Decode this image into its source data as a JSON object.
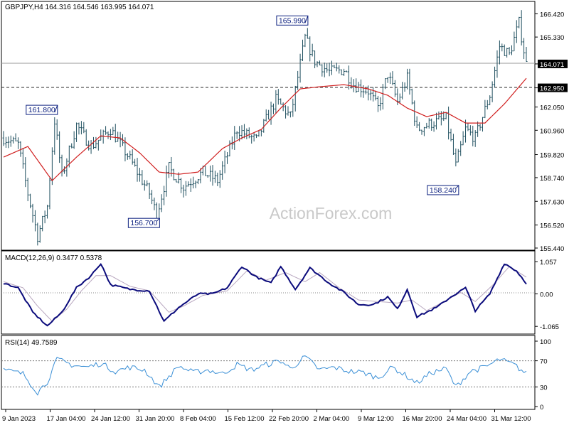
{
  "colors": {
    "frame": "#000000",
    "bars": "#1f4f5f",
    "moving_average": "#d01f1f",
    "macd_line": "#0b0b7c",
    "macd_signal": "#b8a7bf",
    "rsi_line": "#3a8fd6",
    "annotation_border": "#0b1f7f",
    "annotation_text": "#0b1f7f",
    "price_tag_bg": "#000000",
    "price_tag_text": "#ffffff",
    "watermark": "#c9c9c9",
    "dotted_line": "#7a7a7a"
  },
  "price_panel": {
    "header": "GBPJPY,H4  164.316 164.546 163.995 164.071",
    "watermark": "ActionForex.com",
    "current_price_tag": "164.071",
    "level_tag": "162.950",
    "annotations": [
      {
        "text": "165.990",
        "bar": 124,
        "price": 165.99,
        "side": "left"
      },
      {
        "text": "161.800",
        "bar": 21,
        "price": 161.8,
        "side": "left"
      },
      {
        "text": "156.700",
        "bar": 63,
        "price": 156.7,
        "side": "left"
      },
      {
        "text": "158.240",
        "bar": 186,
        "price": 158.24,
        "side": "left"
      }
    ]
  },
  "macd_panel": {
    "header": "MACD(12,26,9) 0.3477 0.5378",
    "ticks": [
      "1.057",
      "0.00",
      "-1.065"
    ]
  },
  "rsi_panel": {
    "header": "RSI(14) 49.7589",
    "ticks": [
      "100",
      "70",
      "30",
      "0"
    ]
  },
  "x_axis": {
    "labels": [
      "9 Jan 2023",
      "17 Jan 04:00",
      "24 Jan 12:00",
      "31 Jan 20:00",
      "8 Feb 04:00",
      "15 Feb 12:00",
      "22 Feb 20:00",
      "2 Mar 04:00",
      "9 Mar 12:00",
      "16 Mar 20:00",
      "24 Mar 04:00",
      "31 Mar 12:00"
    ]
  },
  "chart_data": {
    "type": "line",
    "title": "GBPJPY,H4",
    "ohlc_last": {
      "open": 164.316,
      "high": 164.546,
      "low": 163.995,
      "close": 164.071
    },
    "x": [
      "9 Jan 2023",
      "17 Jan 04:00",
      "24 Jan 12:00",
      "31 Jan 20:00",
      "8 Feb 04:00",
      "15 Feb 12:00",
      "22 Feb 20:00",
      "2 Mar 04:00",
      "9 Mar 12:00",
      "16 Mar 20:00",
      "24 Mar 04:00",
      "31 Mar 12:00"
    ],
    "price_axis": {
      "ticks": [
        "166.420",
        "165.330",
        "164.071",
        "162.950",
        "162.050",
        "160.960",
        "159.820",
        "158.740",
        "157.630",
        "156.520",
        "155.440"
      ],
      "ylim": [
        155.44,
        166.9
      ]
    },
    "price_close_anchors": [
      [
        0,
        160.6
      ],
      [
        6,
        160.3
      ],
      [
        10,
        158.0
      ],
      [
        14,
        156.0
      ],
      [
        18,
        157.4
      ],
      [
        21,
        161.4
      ],
      [
        24,
        158.8
      ],
      [
        30,
        161.2
      ],
      [
        36,
        160.2
      ],
      [
        44,
        161.0
      ],
      [
        52,
        159.6
      ],
      [
        60,
        158.0
      ],
      [
        63,
        157.0
      ],
      [
        68,
        159.2
      ],
      [
        74,
        158.3
      ],
      [
        82,
        159.0
      ],
      [
        88,
        158.6
      ],
      [
        96,
        161.0
      ],
      [
        104,
        160.5
      ],
      [
        112,
        162.4
      ],
      [
        118,
        161.6
      ],
      [
        124,
        165.3
      ],
      [
        128,
        164.2
      ],
      [
        134,
        163.7
      ],
      [
        140,
        163.8
      ],
      [
        144,
        163.1
      ],
      [
        150,
        162.8
      ],
      [
        154,
        162.0
      ],
      [
        158,
        163.6
      ],
      [
        162,
        162.3
      ],
      [
        166,
        163.4
      ],
      [
        170,
        161.0
      ],
      [
        176,
        161.3
      ],
      [
        182,
        161.5
      ],
      [
        186,
        159.3
      ],
      [
        190,
        161.0
      ],
      [
        194,
        160.6
      ],
      [
        200,
        162.6
      ],
      [
        204,
        164.9
      ],
      [
        208,
        164.5
      ],
      [
        212,
        166.0
      ],
      [
        215,
        164.071
      ]
    ],
    "moving_average_anchors": [
      [
        0,
        159.7
      ],
      [
        10,
        160.2
      ],
      [
        20,
        158.6
      ],
      [
        30,
        159.7
      ],
      [
        40,
        160.7
      ],
      [
        48,
        160.6
      ],
      [
        56,
        159.9
      ],
      [
        64,
        159.0
      ],
      [
        72,
        158.9
      ],
      [
        80,
        159.0
      ],
      [
        90,
        160.1
      ],
      [
        98,
        160.6
      ],
      [
        106,
        161.0
      ],
      [
        114,
        162.0
      ],
      [
        122,
        162.9
      ],
      [
        130,
        163.0
      ],
      [
        140,
        163.1
      ],
      [
        150,
        162.9
      ],
      [
        158,
        162.6
      ],
      [
        166,
        162.0
      ],
      [
        174,
        161.6
      ],
      [
        182,
        161.8
      ],
      [
        190,
        161.3
      ],
      [
        198,
        161.3
      ],
      [
        206,
        162.2
      ],
      [
        215,
        163.4
      ]
    ],
    "macd": {
      "ylim": [
        -1.2,
        1.2
      ],
      "macd_anchors": [
        [
          0,
          0.35
        ],
        [
          6,
          0.2
        ],
        [
          12,
          -0.6
        ],
        [
          18,
          -1.05
        ],
        [
          24,
          -0.6
        ],
        [
          30,
          0.2
        ],
        [
          36,
          0.6
        ],
        [
          40,
          1.0
        ],
        [
          44,
          0.3
        ],
        [
          52,
          0.15
        ],
        [
          60,
          0.1
        ],
        [
          66,
          -0.9
        ],
        [
          72,
          -0.45
        ],
        [
          80,
          0.0
        ],
        [
          86,
          0.0
        ],
        [
          92,
          0.2
        ],
        [
          98,
          0.9
        ],
        [
          104,
          0.55
        ],
        [
          110,
          0.35
        ],
        [
          114,
          0.9
        ],
        [
          120,
          0.15
        ],
        [
          126,
          0.85
        ],
        [
          134,
          0.35
        ],
        [
          140,
          0.05
        ],
        [
          146,
          -0.35
        ],
        [
          152,
          -0.35
        ],
        [
          158,
          -0.1
        ],
        [
          162,
          -0.5
        ],
        [
          166,
          0.15
        ],
        [
          170,
          -0.75
        ],
        [
          178,
          -0.45
        ],
        [
          184,
          -0.1
        ],
        [
          190,
          0.2
        ],
        [
          194,
          -0.55
        ],
        [
          200,
          0.0
        ],
        [
          206,
          1.0
        ],
        [
          211,
          0.75
        ],
        [
          215,
          0.35
        ]
      ],
      "signal_anchors": [
        [
          0,
          0.4
        ],
        [
          8,
          0.2
        ],
        [
          14,
          -0.4
        ],
        [
          20,
          -0.9
        ],
        [
          26,
          -0.5
        ],
        [
          32,
          0.1
        ],
        [
          38,
          0.6
        ],
        [
          44,
          0.6
        ],
        [
          52,
          0.25
        ],
        [
          60,
          0.1
        ],
        [
          68,
          -0.6
        ],
        [
          74,
          -0.4
        ],
        [
          82,
          -0.05
        ],
        [
          92,
          0.1
        ],
        [
          100,
          0.75
        ],
        [
          108,
          0.45
        ],
        [
          116,
          0.7
        ],
        [
          124,
          0.4
        ],
        [
          130,
          0.7
        ],
        [
          138,
          0.2
        ],
        [
          146,
          -0.2
        ],
        [
          154,
          -0.25
        ],
        [
          162,
          -0.3
        ],
        [
          168,
          -0.2
        ],
        [
          174,
          -0.55
        ],
        [
          180,
          -0.3
        ],
        [
          188,
          0.05
        ],
        [
          194,
          -0.25
        ],
        [
          202,
          0.35
        ],
        [
          208,
          0.9
        ],
        [
          215,
          0.55
        ]
      ]
    },
    "rsi": {
      "ylim": [
        0,
        100
      ],
      "levels": [
        70,
        30
      ],
      "anchors": [
        [
          0,
          56
        ],
        [
          8,
          50
        ],
        [
          14,
          22
        ],
        [
          18,
          38
        ],
        [
          22,
          72
        ],
        [
          28,
          64
        ],
        [
          34,
          60
        ],
        [
          40,
          66
        ],
        [
          46,
          54
        ],
        [
          52,
          60
        ],
        [
          58,
          56
        ],
        [
          64,
          30
        ],
        [
          68,
          46
        ],
        [
          72,
          62
        ],
        [
          78,
          52
        ],
        [
          84,
          56
        ],
        [
          90,
          50
        ],
        [
          96,
          64
        ],
        [
          102,
          56
        ],
        [
          108,
          64
        ],
        [
          114,
          70
        ],
        [
          118,
          58
        ],
        [
          124,
          76
        ],
        [
          130,
          56
        ],
        [
          136,
          60
        ],
        [
          142,
          54
        ],
        [
          148,
          52
        ],
        [
          154,
          44
        ],
        [
          160,
          60
        ],
        [
          166,
          46
        ],
        [
          170,
          36
        ],
        [
          176,
          52
        ],
        [
          182,
          58
        ],
        [
          186,
          30
        ],
        [
          192,
          54
        ],
        [
          198,
          60
        ],
        [
          204,
          72
        ],
        [
          210,
          64
        ],
        [
          215,
          50
        ]
      ]
    }
  }
}
